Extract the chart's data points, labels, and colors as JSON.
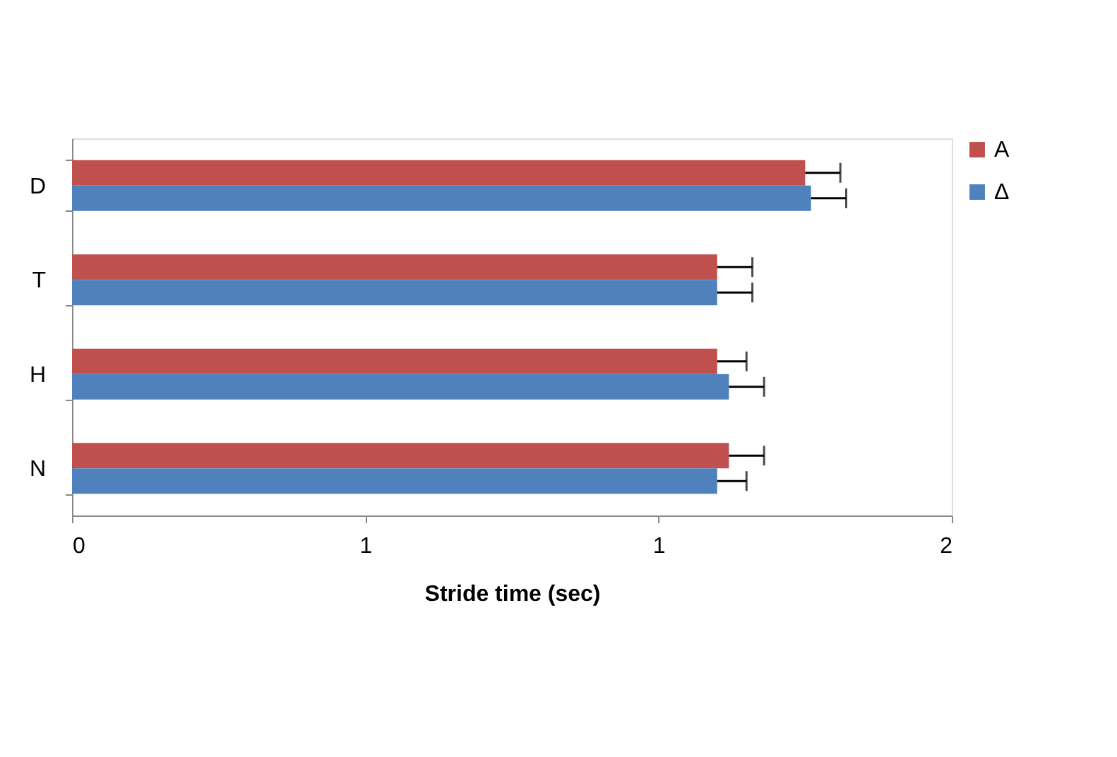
{
  "chart_data": {
    "type": "bar",
    "orientation": "horizontal",
    "xlabel": "Stride time (sec)",
    "categories": [
      "D",
      "T",
      "H",
      "N"
    ],
    "series": [
      {
        "name": "A",
        "color": "#c0504d",
        "values": [
          1.25,
          1.1,
          1.1,
          1.12
        ],
        "errors": [
          [
            1.25,
            1.31
          ],
          [
            1.1,
            1.16
          ],
          [
            1.1,
            1.15
          ],
          [
            1.12,
            1.18
          ]
        ]
      },
      {
        "name": "Δ",
        "color": "#4f81bd",
        "values": [
          1.26,
          1.1,
          1.12,
          1.1
        ],
        "errors": [
          [
            1.26,
            1.32
          ],
          [
            1.1,
            1.16
          ],
          [
            1.12,
            1.18
          ],
          [
            1.1,
            1.15
          ]
        ]
      }
    ],
    "xlim": [
      0,
      1.5
    ],
    "xticks": [
      0,
      {
        "value": 0.5,
        "label": "1"
      },
      1,
      {
        "value": 1.5,
        "label": "2"
      }
    ],
    "legend": "top right",
    "grid": false
  }
}
